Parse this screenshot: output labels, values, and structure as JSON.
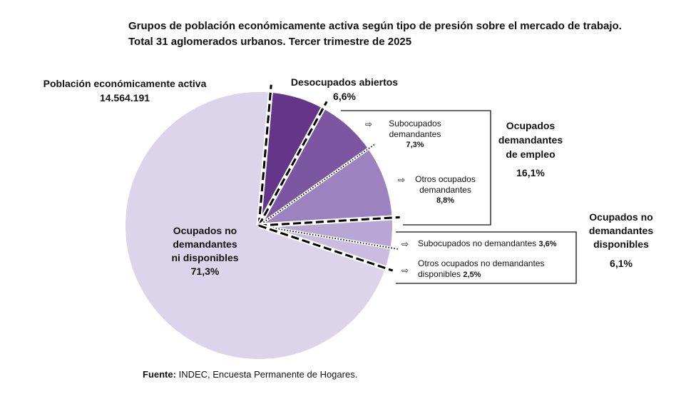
{
  "title": {
    "line1": "Grupos de población económicamente activa según tipo de presión sobre el mercado de trabajo.",
    "line2": "Total 31 aglomerados urbanos. Tercer trimestre de 2025"
  },
  "pea": {
    "label": "Población económicamente activa",
    "value": "14.564.191"
  },
  "groups": {
    "desocupados": {
      "label": "Desocupados abiertos",
      "pct": "6,6%"
    },
    "ocupados_demandantes": {
      "line1": "Ocupados",
      "line2": "demandantes",
      "line3": "de empleo",
      "pct": "16,1%"
    },
    "ocupados_no_demandantes": {
      "line1": "Ocupados no",
      "line2": "demandantes",
      "line3": "disponibles",
      "pct": "6,1%"
    },
    "ocupados_no_demandantes_ni_disp": {
      "line1": "Ocupados no",
      "line2": "demandantes",
      "line3": "ni disponibles",
      "pct": "71,3%"
    }
  },
  "legend": {
    "arrow": "⇨",
    "subocupados_dem": {
      "line1": "Subocupados",
      "line2": "demandantes",
      "pct": "7,3%"
    },
    "otros_dem": {
      "line1": "Otros ocupados",
      "line2": "demandantes",
      "pct": "8,8%"
    },
    "subocupados_no_dem": {
      "label": "Subocupados no demandantes",
      "pct": "3,6%"
    },
    "otros_no_dem": {
      "line1": "Otros ocupados no demandantes",
      "line2": "disponibles",
      "pct": "2,5%"
    }
  },
  "source": {
    "label": "Fuente:",
    "text": "INDEC, Encuesta Permanente de Hogares."
  },
  "chart_data": {
    "type": "pie",
    "title": "Grupos de población económicamente activa según tipo de presión sobre el mercado de trabajo. Total 31 aglomerados urbanos. Tercer trimestre de 2025",
    "total": 14564191,
    "slices": [
      {
        "name": "Desocupados abiertos",
        "value": 6.6,
        "color": "#643589"
      },
      {
        "name": "Subocupados demandantes",
        "value": 7.3,
        "color": "#7d56a2"
      },
      {
        "name": "Otros ocupados demandantes",
        "value": 8.8,
        "color": "#9c83bf"
      },
      {
        "name": "Subocupados no demandantes",
        "value": 3.6,
        "color": "#b8a7d4"
      },
      {
        "name": "Otros ocupados no demandantes disponibles",
        "value": 2.5,
        "color": "#cbbde1"
      },
      {
        "name": "Ocupados no demandantes ni disponibles",
        "value": 71.3,
        "color": "#dcd4ea"
      }
    ],
    "groups": [
      {
        "name": "Ocupados demandantes de empleo",
        "value": 16.1
      },
      {
        "name": "Ocupados no demandantes disponibles",
        "value": 6.1
      }
    ],
    "start_angle_deg": 5,
    "direction": "clockwise"
  }
}
